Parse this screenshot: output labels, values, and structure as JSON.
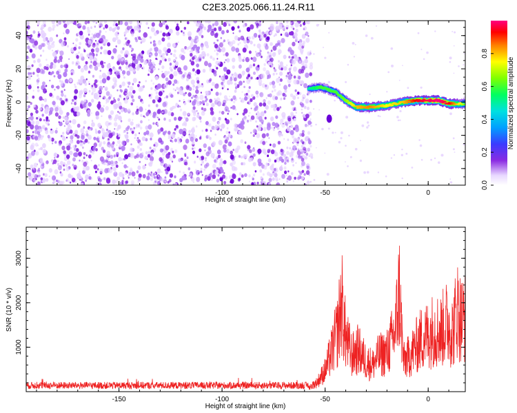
{
  "chart_data": [
    {
      "type": "heatmap",
      "title": "C2E3.2025.066.11.24.R11",
      "xlabel": "Height of straight line (km)",
      "ylabel": "Frequency (Hz)",
      "xlim": [
        -195,
        18
      ],
      "ylim": [
        -50,
        49
      ],
      "xticks": [
        -150,
        -100,
        -50,
        0
      ],
      "yticks": [
        -40,
        -20,
        0,
        20,
        40
      ],
      "colorbar": {
        "label": "Normalized spectral amplitude",
        "range": [
          0,
          1
        ],
        "ticks": [
          0.0,
          0.2,
          0.4,
          0.6,
          0.8
        ]
      },
      "regions": [
        {
          "name": "noise",
          "x_range": [
            -195,
            -58
          ],
          "freq_range": [
            -50,
            49
          ],
          "amplitude_range": [
            0.0,
            0.12
          ]
        },
        {
          "name": "signal-track",
          "points": [
            {
              "x": -58,
              "freq": 8,
              "amp": 0.45
            },
            {
              "x": -52,
              "freq": 9,
              "amp": 0.55
            },
            {
              "x": -45,
              "freq": 6,
              "amp": 0.55
            },
            {
              "x": -40,
              "freq": 1,
              "amp": 0.6
            },
            {
              "x": -35,
              "freq": -3,
              "amp": 0.75
            },
            {
              "x": -28,
              "freq": -3,
              "amp": 0.8
            },
            {
              "x": -20,
              "freq": -2,
              "amp": 0.7
            },
            {
              "x": -12,
              "freq": 0,
              "amp": 0.75
            },
            {
              "x": -5,
              "freq": 1,
              "amp": 0.9
            },
            {
              "x": 5,
              "freq": 1,
              "amp": 0.95
            },
            {
              "x": 10,
              "freq": -1,
              "amp": 0.9
            },
            {
              "x": 18,
              "freq": -1,
              "amp": 0.6
            }
          ]
        }
      ]
    },
    {
      "type": "line",
      "xlabel": "Height of straight line (km)",
      "ylabel": "SNR (10 * v/v)",
      "xlim": [
        -195,
        18
      ],
      "ylim": [
        0,
        3700
      ],
      "xticks": [
        -150,
        -100,
        -50,
        0
      ],
      "yticks": [
        1000,
        2000,
        3000
      ],
      "color": "#ee2222",
      "series": [
        {
          "x": [
            -195,
            -185,
            -175,
            -165,
            -155,
            -145,
            -135,
            -125,
            -115,
            -105,
            -95,
            -85,
            -75,
            -65,
            -58,
            -54,
            -50,
            -47,
            -44,
            -42,
            -40,
            -37,
            -34,
            -30,
            -27,
            -24,
            -20,
            -16,
            -14,
            -12,
            -9,
            -6,
            -3,
            0,
            3,
            6,
            9,
            12,
            14,
            16,
            18
          ],
          "y": [
            120,
            130,
            120,
            140,
            130,
            150,
            130,
            140,
            130,
            130,
            120,
            130,
            130,
            130,
            140,
            300,
            700,
            1300,
            2000,
            3000,
            1800,
            1200,
            1400,
            1000,
            900,
            1200,
            1300,
            2000,
            3400,
            1000,
            1200,
            1500,
            1800,
            1900,
            2100,
            2000,
            2300,
            2000,
            2800,
            2400,
            2500
          ]
        }
      ]
    }
  ]
}
